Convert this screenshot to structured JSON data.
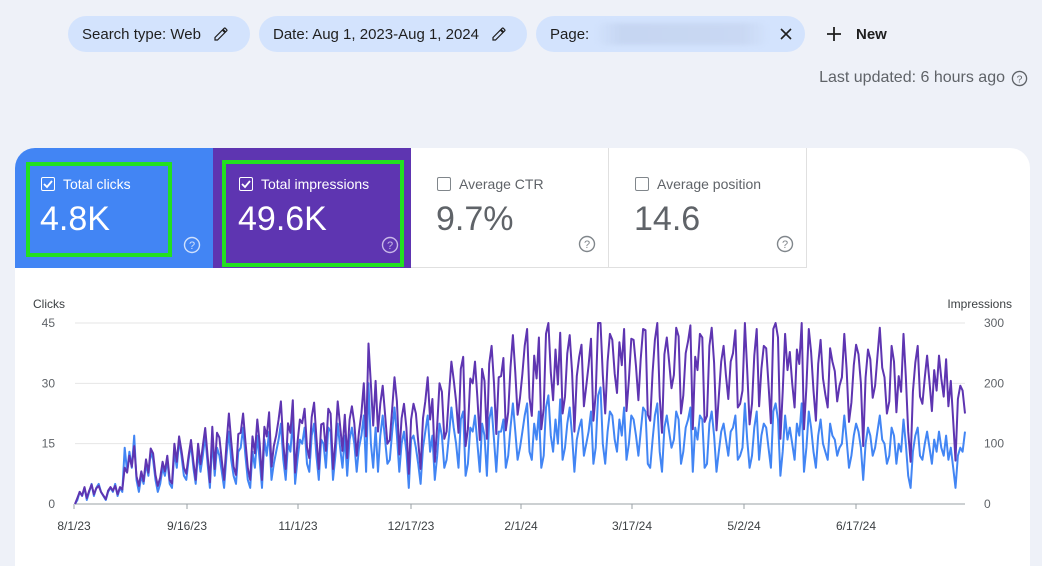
{
  "filters": {
    "search_type": "Search type: Web",
    "date": "Date: Aug 1, 2023-Aug 1, 2024",
    "page_label": "Page:",
    "new_label": "New"
  },
  "last_updated": "Last updated: 6 hours ago",
  "metrics": [
    {
      "label": "Total clicks",
      "value": "4.8K",
      "checked": true
    },
    {
      "label": "Total impressions",
      "value": "49.6K",
      "checked": true
    },
    {
      "label": "Average CTR",
      "value": "9.7%",
      "checked": false
    },
    {
      "label": "Average position",
      "value": "14.6",
      "checked": false
    }
  ],
  "colors": {
    "clicks": "#4285f4",
    "impressions": "#5e35b1",
    "highlight": "#22e01f"
  },
  "chart_data": {
    "type": "line",
    "ylabel": "Clicks",
    "y2label": "Impressions",
    "ylim": [
      0,
      45
    ],
    "y2lim": [
      0,
      300
    ],
    "yticks": [
      "45",
      "30",
      "15",
      "0"
    ],
    "y2ticks": [
      "300",
      "200",
      "100",
      "0"
    ],
    "xticks": [
      "8/1/23",
      "9/16/23",
      "11/1/23",
      "12/17/23",
      "2/1/24",
      "3/17/24",
      "5/2/24",
      "6/17/24"
    ],
    "grid": true,
    "series": [
      {
        "name": "Clicks",
        "axis": "left",
        "values": [
          0,
          1,
          3,
          2,
          4,
          1,
          3,
          5,
          2,
          4,
          5,
          3,
          2,
          1,
          3,
          4,
          3,
          5,
          2,
          4,
          3,
          14,
          8,
          13,
          9,
          17,
          6,
          3,
          7,
          5,
          10,
          7,
          13,
          11,
          6,
          3,
          5,
          9,
          7,
          11,
          5,
          4,
          13,
          9,
          16,
          12,
          7,
          6,
          11,
          15,
          9,
          5,
          13,
          8,
          12,
          17,
          10,
          4,
          16,
          7,
          14,
          12,
          8,
          4,
          12,
          18,
          11,
          7,
          5,
          13,
          14,
          19,
          12,
          6,
          4,
          13,
          9,
          17,
          11,
          4,
          16,
          12,
          18,
          6,
          10,
          13,
          16,
          20,
          11,
          6,
          15,
          13,
          21,
          5,
          11,
          16,
          15,
          19,
          10,
          8,
          17,
          20,
          12,
          6,
          16,
          15,
          9,
          19,
          18,
          6,
          12,
          20,
          14,
          9,
          17,
          7,
          16,
          19,
          15,
          8,
          14,
          17,
          22,
          8,
          30,
          15,
          9,
          19,
          8,
          17,
          22,
          16,
          10,
          11,
          18,
          24,
          17,
          8,
          15,
          18,
          13,
          4,
          16,
          17,
          14,
          10,
          5,
          14,
          18,
          22,
          13,
          17,
          6,
          12,
          20,
          17,
          9,
          11,
          17,
          24,
          19,
          15,
          9,
          21,
          23,
          7,
          10,
          19,
          18,
          22,
          15,
          8,
          20,
          17,
          7,
          21,
          24,
          16,
          8,
          18,
          18,
          21,
          9,
          12,
          19,
          25,
          18,
          11,
          14,
          18,
          22,
          25,
          13,
          11,
          20,
          16,
          23,
          9,
          12,
          24,
          27,
          17,
          13,
          21,
          15,
          26,
          11,
          14,
          20,
          24,
          17,
          8,
          16,
          19,
          21,
          12,
          15,
          18,
          23,
          10,
          14,
          27,
          29,
          15,
          10,
          18,
          23,
          22,
          16,
          13,
          21,
          17,
          24,
          11,
          15,
          22,
          21,
          17,
          12,
          18,
          24,
          23,
          10,
          9,
          16,
          22,
          25,
          13,
          8,
          19,
          22,
          18,
          14,
          16,
          23,
          21,
          10,
          13,
          19,
          21,
          24,
          8,
          19,
          16,
          22,
          21,
          9,
          10,
          20,
          23,
          17,
          8,
          13,
          18,
          20,
          16,
          12,
          18,
          19,
          22,
          11,
          12,
          14,
          25,
          16,
          9,
          12,
          19,
          23,
          11,
          17,
          20,
          19,
          14,
          9,
          23,
          25,
          21,
          7,
          13,
          22,
          16,
          19,
          15,
          11,
          20,
          17,
          25,
          8,
          14,
          23,
          19,
          13,
          9,
          17,
          21,
          15,
          13,
          11,
          20,
          17,
          16,
          12,
          14,
          15,
          22,
          16,
          9,
          12,
          17,
          20,
          18,
          14,
          6,
          15,
          19,
          17,
          12,
          14,
          18,
          22,
          16,
          15,
          10,
          12,
          19,
          17,
          10,
          15,
          13,
          21,
          15,
          7,
          4,
          13,
          17,
          19,
          12,
          11,
          15,
          18,
          14,
          10,
          16,
          13,
          18,
          14,
          12,
          17,
          11,
          14,
          9,
          4,
          12,
          14,
          13,
          18
        ]
      },
      {
        "name": "Impressions",
        "axis": "right",
        "values": [
          0,
          10,
          20,
          14,
          28,
          10,
          22,
          32,
          16,
          26,
          30,
          20,
          14,
          8,
          22,
          28,
          22,
          30,
          16,
          28,
          24,
          60,
          52,
          80,
          62,
          96,
          46,
          30,
          54,
          38,
          74,
          52,
          92,
          84,
          48,
          30,
          44,
          70,
          54,
          80,
          40,
          34,
          100,
          70,
          112,
          88,
          60,
          50,
          80,
          106,
          70,
          40,
          100,
          66,
          96,
          126,
          80,
          36,
          128,
          58,
          118,
          110,
          72,
          40,
          100,
          150,
          104,
          62,
          48,
          116,
          118,
          150,
          104,
          60,
          40,
          112,
          84,
          140,
          102,
          40,
          128,
          112,
          152,
          62,
          96,
          114,
          140,
          170,
          100,
          58,
          134,
          118,
          172,
          52,
          102,
          140,
          134,
          158,
          94,
          76,
          144,
          168,
          110,
          58,
          132,
          134,
          88,
          158,
          150,
          58,
          104,
          170,
          130,
          88,
          148,
          76,
          140,
          162,
          134,
          80,
          120,
          150,
          200,
          112,
          266,
          198,
          130,
          204,
          120,
          166,
          196,
          148,
          100,
          106,
          158,
          210,
          170,
          82,
          142,
          166,
          126,
          50,
          140,
          166,
          150,
          104,
          58,
          142,
          170,
          210,
          140,
          174,
          70,
          130,
          200,
          186,
          108,
          120,
          182,
          236,
          206,
          170,
          118,
          224,
          244,
          96,
          124,
          208,
          200,
          236,
          176,
          106,
          224,
          204,
          108,
          232,
          262,
          200,
          116,
          210,
          212,
          242,
          122,
          152,
          226,
          280,
          218,
          148,
          176,
          216,
          262,
          290,
          176,
          146,
          246,
          208,
          276,
          124,
          158,
          282,
          300,
          218,
          172,
          256,
          198,
          284,
          150,
          178,
          250,
          280,
          218,
          120,
          212,
          244,
          264,
          162,
          196,
          230,
          274,
          138,
          182,
          302,
          304,
          214,
          150,
          236,
          282,
          272,
          216,
          184,
          268,
          230,
          290,
          154,
          206,
          274,
          272,
          228,
          172,
          240,
          290,
          288,
          148,
          138,
          218,
          272,
          300,
          178,
          118,
          248,
          276,
          236,
          192,
          214,
          292,
          278,
          150,
          180,
          250,
          270,
          296,
          124,
          244,
          222,
          282,
          276,
          136,
          146,
          262,
          292,
          234,
          122,
          178,
          236,
          262,
          214,
          174,
          236,
          250,
          288,
          160,
          166,
          188,
          302,
          222,
          132,
          166,
          246,
          290,
          162,
          224,
          262,
          258,
          198,
          134,
          290,
          308,
          276,
          108,
          186,
          282,
          222,
          252,
          200,
          160,
          256,
          232,
          312,
          124,
          194,
          290,
          252,
          188,
          138,
          232,
          272,
          208,
          182,
          160,
          258,
          236,
          220,
          170,
          196,
          210,
          282,
          224,
          136,
          168,
          230,
          264,
          248,
          200,
          96,
          210,
          256,
          240,
          176,
          196,
          244,
          292,
          226,
          210,
          150,
          170,
          262,
          236,
          152,
          212,
          186,
          282,
          212,
          120,
          70,
          186,
          234,
          262,
          178,
          166,
          210,
          246,
          202,
          154,
          222,
          188,
          246,
          208,
          178,
          240,
          162,
          204,
          138,
          72,
          174,
          196,
          188,
          150
        ]
      }
    ]
  }
}
